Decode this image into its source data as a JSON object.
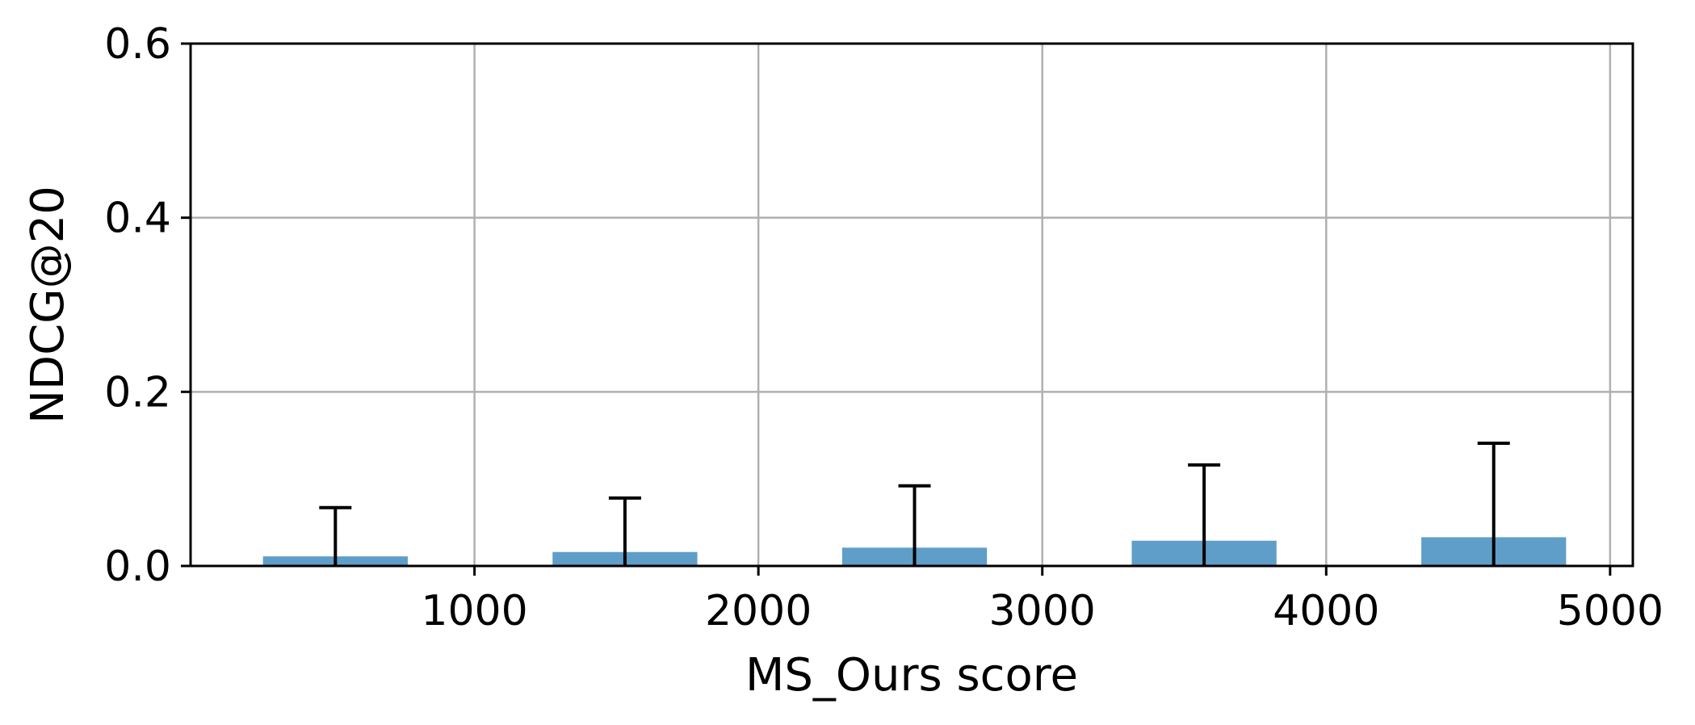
{
  "chart_data": {
    "type": "bar",
    "xlabel": "MS_Ours score",
    "ylabel": "NDCG@20",
    "xlim": [
      0,
      5080
    ],
    "ylim": [
      0,
      0.6
    ],
    "x_ticks": [
      1000,
      2000,
      3000,
      4000,
      5000
    ],
    "y_ticks": [
      0.0,
      0.2,
      0.4,
      0.6
    ],
    "x_tick_labels": [
      "1000",
      "2000",
      "3000",
      "4000",
      "5000"
    ],
    "y_tick_labels": [
      "0.0",
      "0.2",
      "0.4",
      "0.6"
    ],
    "grid": true,
    "bar_width": 510,
    "series": [
      {
        "x": [
          510,
          1530,
          2550,
          3570,
          4590
        ],
        "values": [
          0.011,
          0.016,
          0.021,
          0.029,
          0.033
        ],
        "error_upper": [
          0.067,
          0.078,
          0.092,
          0.116,
          0.141
        ]
      }
    ],
    "bar_color": "#5f9ec9",
    "error_color": "#000000",
    "grid_color": "#b0b0b0"
  }
}
